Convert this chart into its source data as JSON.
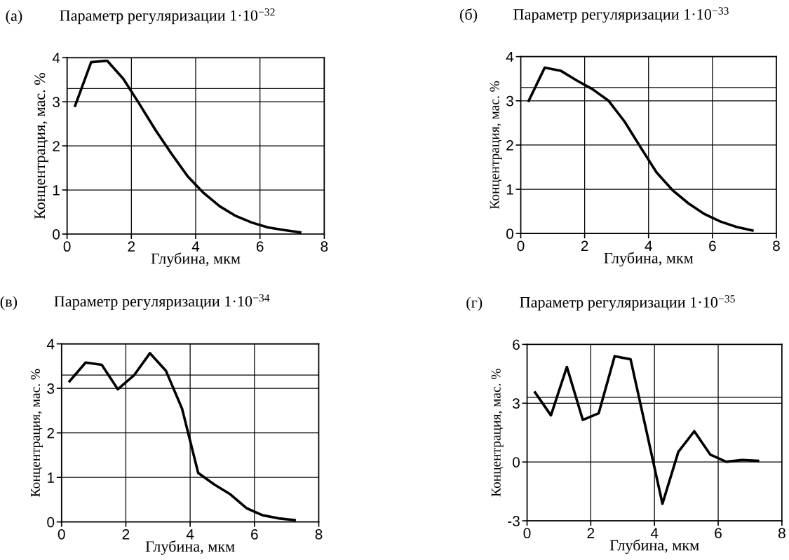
{
  "chart_data": [
    {
      "type": "line",
      "title": "Параметр регуляризации 1·10$^{−32}$",
      "annotations": [
        "(а)"
      ],
      "xlabel": "Глубина, мкм",
      "ylabel": "Концентрация, мас. %",
      "x": [
        0.25,
        0.75,
        1.25,
        1.75,
        2.25,
        2.75,
        3.25,
        3.75,
        4.25,
        4.75,
        5.25,
        5.75,
        6.25,
        6.75,
        7.25
      ],
      "series": [
        {
          "color": "#000000",
          "values": [
            2.91,
            3.9,
            3.93,
            3.52,
            2.95,
            2.36,
            1.82,
            1.31,
            0.93,
            0.63,
            0.41,
            0.26,
            0.15,
            0.09,
            0.04
          ]
        }
      ],
      "ref_lines": [
        {
          "axis": "y",
          "value": 3.3,
          "color": "#000000"
        }
      ],
      "xlim": [
        0,
        8
      ],
      "xticks": [
        0,
        2,
        4,
        6,
        8
      ],
      "ylim": [
        0,
        4
      ],
      "yticks": [
        0,
        1,
        2,
        3,
        4
      ],
      "grid": true,
      "legend": false
    },
    {
      "type": "line",
      "title": "Параметр регуляризации 1·10$^{−33}$",
      "annotations": [
        "(б)"
      ],
      "xlabel": "Глубина, мкм",
      "ylabel": "Концентрация, мас. %",
      "x": [
        0.25,
        0.75,
        1.25,
        1.75,
        2.25,
        2.75,
        3.25,
        3.75,
        4.25,
        4.75,
        5.25,
        5.75,
        6.25,
        6.75,
        7.25
      ],
      "series": [
        {
          "color": "#000000",
          "values": [
            3.0,
            3.75,
            3.68,
            3.46,
            3.26,
            3.0,
            2.53,
            1.95,
            1.38,
            0.98,
            0.68,
            0.44,
            0.27,
            0.15,
            0.07
          ]
        }
      ],
      "ref_lines": [
        {
          "axis": "y",
          "value": 3.3,
          "color": "#000000"
        }
      ],
      "xlim": [
        0,
        8
      ],
      "xticks": [
        0,
        2,
        4,
        6,
        8
      ],
      "ylim": [
        0,
        4
      ],
      "yticks": [
        0,
        1,
        2,
        3,
        4
      ],
      "grid": true,
      "legend": false
    },
    {
      "type": "line",
      "title": "Параметр регуляризации 1·10$^{−34}$",
      "annotations": [
        "(в)"
      ],
      "xlabel": "Глубина, мкм",
      "ylabel": "Концентрация, мас. %",
      "x": [
        0.25,
        0.75,
        1.25,
        1.75,
        2.25,
        2.75,
        3.25,
        3.75,
        4.25,
        4.75,
        5.25,
        5.75,
        6.25,
        6.75,
        7.25
      ],
      "series": [
        {
          "color": "#000000",
          "values": [
            3.16,
            3.58,
            3.53,
            2.98,
            3.29,
            3.79,
            3.39,
            2.54,
            1.1,
            0.84,
            0.62,
            0.31,
            0.15,
            0.08,
            0.04
          ]
        }
      ],
      "ref_lines": [
        {
          "axis": "y",
          "value": 3.3,
          "color": "#000000"
        }
      ],
      "xlim": [
        0,
        8
      ],
      "xticks": [
        0,
        2,
        4,
        6,
        8
      ],
      "ylim": [
        0,
        4
      ],
      "yticks": [
        0,
        1,
        2,
        3,
        4
      ],
      "grid": true,
      "legend": false
    },
    {
      "type": "line",
      "title": "Параметр регуляризации 1·10$^{−35}$",
      "annotations": [
        "(г)"
      ],
      "xlabel": "Глубина, мкм",
      "ylabel": "Концентрация, мас. %",
      "x": [
        0.25,
        0.75,
        1.25,
        1.75,
        2.25,
        2.75,
        3.25,
        3.75,
        4.25,
        4.75,
        5.25,
        5.75,
        6.25,
        6.75,
        7.25
      ],
      "series": [
        {
          "color": "#000000",
          "values": [
            3.55,
            2.38,
            4.85,
            2.15,
            2.49,
            5.4,
            5.24,
            1.57,
            -2.13,
            0.52,
            1.57,
            0.38,
            0.01,
            0.1,
            0.06
          ]
        }
      ],
      "ref_lines": [
        {
          "axis": "y",
          "value": 3.3,
          "color": "#000000"
        }
      ],
      "xlim": [
        0,
        8
      ],
      "xticks": [
        0,
        2,
        4,
        6,
        8
      ],
      "ylim": [
        -3,
        6
      ],
      "yticks": [
        {
          "value": -3,
          "label": "-3"
        },
        0,
        3,
        6
      ],
      "grid": true,
      "legend": false
    }
  ]
}
